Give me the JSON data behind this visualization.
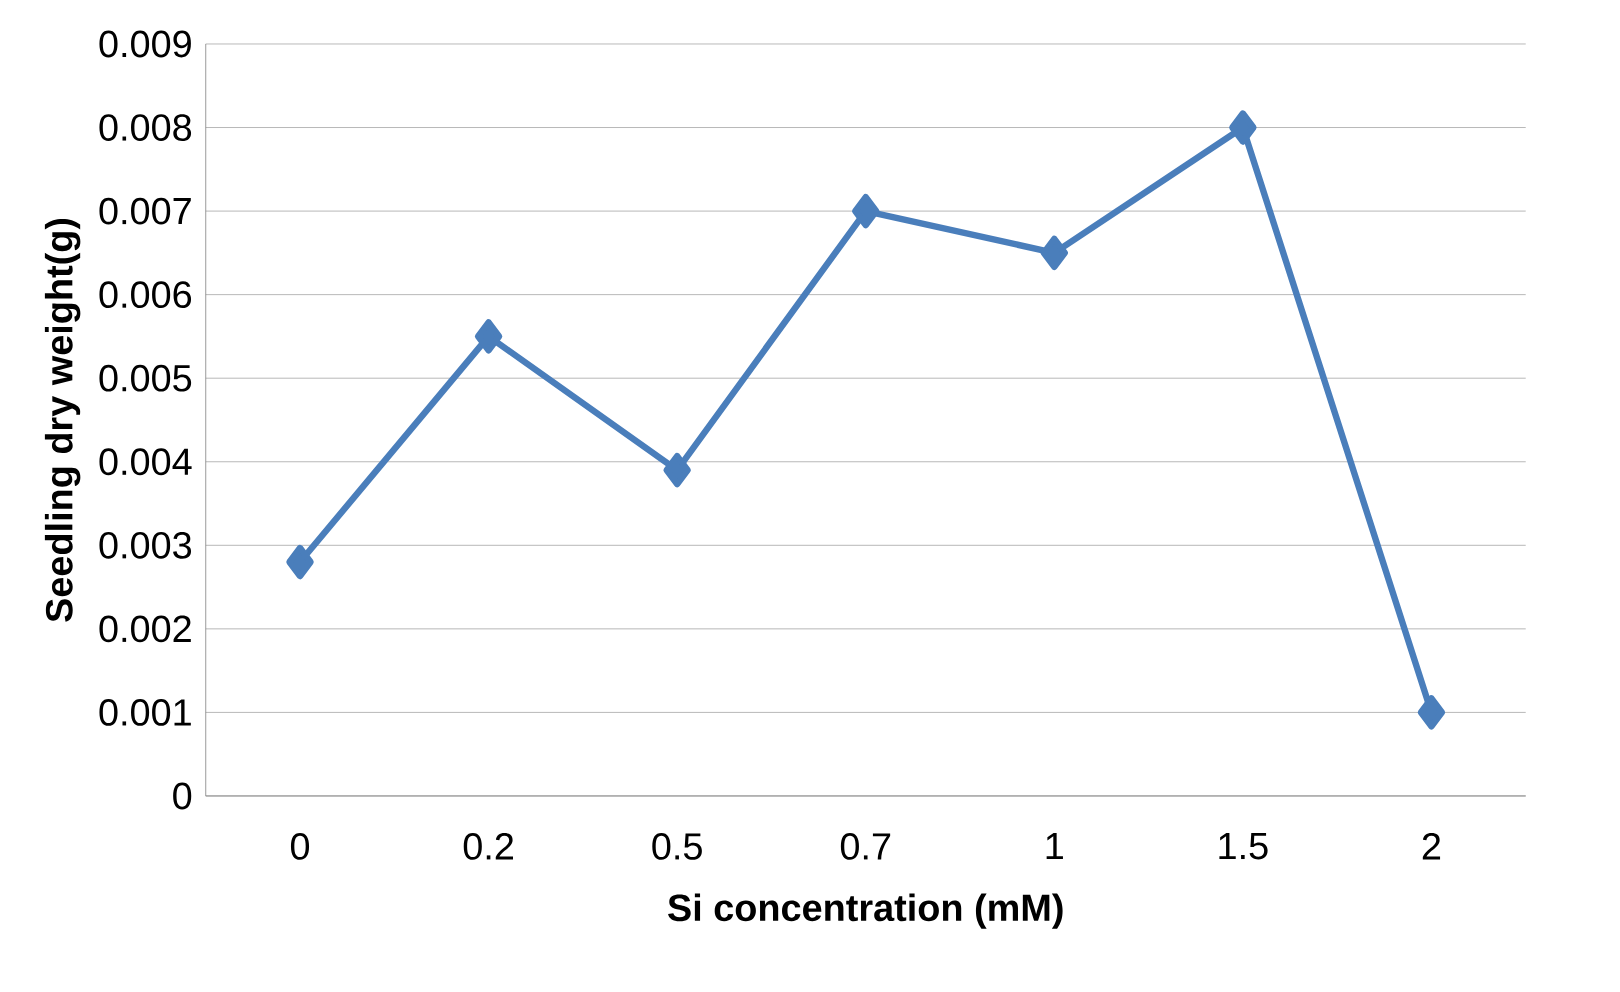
{
  "chart_data": {
    "type": "line",
    "xlabel": "Si concentration (mM)",
    "ylabel": "Seedling dry weight(g)",
    "categories": [
      "0",
      "0.2",
      "0.5",
      "0.7",
      "1",
      "1.5",
      "2"
    ],
    "series": [
      {
        "color": "#4a7ebb",
        "values": [
          0.0028,
          0.0055,
          0.0039,
          0.007,
          0.0065,
          0.008,
          0.001
        ]
      }
    ],
    "ylim": [
      0,
      0.009
    ],
    "yticks": [
      0,
      0.001,
      0.002,
      0.003,
      0.004,
      0.005,
      0.006,
      0.007,
      0.008,
      0.009
    ],
    "grid": "y",
    "marker": "diamond",
    "line_style": "solid"
  }
}
